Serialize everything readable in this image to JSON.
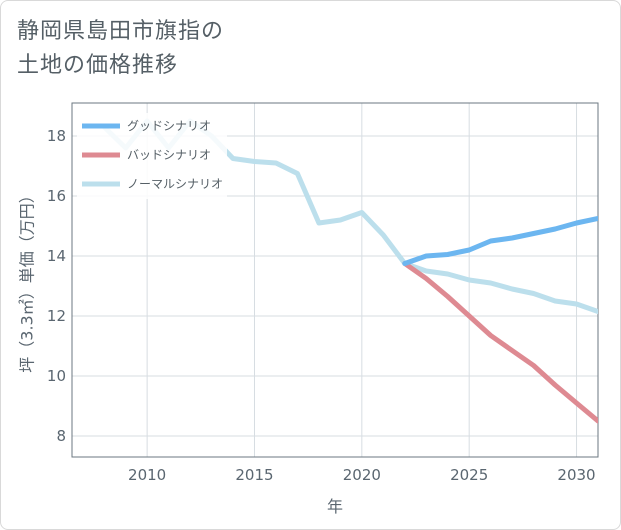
{
  "title_lines": [
    "静岡県島田市旗指の",
    "土地の価格推移"
  ],
  "chart_data": {
    "type": "line",
    "xlabel": "年",
    "ylabel": "坪（3.3㎡）単価（万円）",
    "xlim": [
      2006.5,
      2031
    ],
    "ylim": [
      7.3,
      19.1
    ],
    "x_ticks": [
      2010,
      2015,
      2020,
      2025,
      2030
    ],
    "y_ticks": [
      8,
      10,
      12,
      14,
      16,
      18
    ],
    "grid": true,
    "legend_position": "top-left",
    "series": [
      {
        "name": "グッドシナリオ",
        "color": "#6cb6f0",
        "x": [
          2022,
          2023,
          2024,
          2025,
          2026,
          2027,
          2028,
          2029,
          2030,
          2031
        ],
        "y": [
          13.75,
          14.0,
          14.05,
          14.2,
          14.5,
          14.6,
          14.75,
          14.9,
          15.1,
          15.25
        ]
      },
      {
        "name": "バッドシナリオ",
        "color": "#de8a92",
        "x": [
          2022,
          2023,
          2024,
          2025,
          2026,
          2027,
          2028,
          2029,
          2030,
          2031
        ],
        "y": [
          13.75,
          13.25,
          12.65,
          12.0,
          11.35,
          10.85,
          10.35,
          9.7,
          9.1,
          8.5
        ]
      },
      {
        "name": "ノーマルシナリオ",
        "color": "#bcdfec",
        "x": [
          2008,
          2009,
          2010,
          2011,
          2012,
          2013,
          2014,
          2015,
          2016,
          2017,
          2018,
          2019,
          2020,
          2021,
          2022,
          2023,
          2024,
          2025,
          2026,
          2027,
          2028,
          2029,
          2030,
          2031
        ],
        "y": [
          18.3,
          17.6,
          18.5,
          17.6,
          18.5,
          18.0,
          17.25,
          17.15,
          17.1,
          16.75,
          15.1,
          15.2,
          15.45,
          14.7,
          13.75,
          13.5,
          13.4,
          13.2,
          13.1,
          12.9,
          12.75,
          12.5,
          12.4,
          12.15
        ]
      }
    ]
  }
}
